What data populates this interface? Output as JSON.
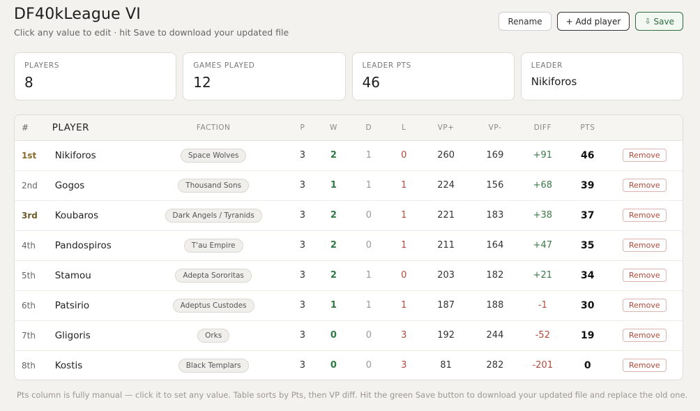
{
  "header": {
    "title": "DF40kLeague VI",
    "subtitle": "Click any value to edit · hit Save to download your updated file"
  },
  "actions": {
    "rename_label": "Rename",
    "add_player_label": "+ Add player",
    "save_icon": "download-icon",
    "save_label": "Save"
  },
  "stats": [
    {
      "label": "PLAYERS",
      "value": "8"
    },
    {
      "label": "GAMES PLAYED",
      "value": "12"
    },
    {
      "label": "LEADER PTS",
      "value": "46"
    },
    {
      "label": "LEADER",
      "value": "Nikiforos"
    }
  ],
  "table": {
    "columns": [
      "#",
      "PLAYER",
      "FACTION",
      "P",
      "W",
      "D",
      "L",
      "VP+",
      "VP-",
      "DIFF",
      "PTS"
    ],
    "remove_label": "Remove",
    "rows": [
      {
        "rank": "1st",
        "player": "Nikiforos",
        "faction": "Space Wolves",
        "p": "3",
        "w": "2",
        "d": "1",
        "l": "0",
        "vp_plus": "260",
        "vp_minus": "169",
        "diff": "+91",
        "pts": "46"
      },
      {
        "rank": "2nd",
        "player": "Gogos",
        "faction": "Thousand Sons",
        "p": "3",
        "w": "1",
        "d": "1",
        "l": "1",
        "vp_plus": "224",
        "vp_minus": "156",
        "diff": "+68",
        "pts": "39"
      },
      {
        "rank": "3rd",
        "player": "Koubaros",
        "faction": "Dark Angels / Tyranids",
        "p": "3",
        "w": "2",
        "d": "0",
        "l": "1",
        "vp_plus": "221",
        "vp_minus": "183",
        "diff": "+38",
        "pts": "37"
      },
      {
        "rank": "4th",
        "player": "Pandospiros",
        "faction": "T'au Empire",
        "p": "3",
        "w": "2",
        "d": "0",
        "l": "1",
        "vp_plus": "211",
        "vp_minus": "164",
        "diff": "+47",
        "pts": "35"
      },
      {
        "rank": "5th",
        "player": "Stamou",
        "faction": "Adepta Sororitas",
        "p": "3",
        "w": "2",
        "d": "1",
        "l": "0",
        "vp_plus": "203",
        "vp_minus": "182",
        "diff": "+21",
        "pts": "34"
      },
      {
        "rank": "6th",
        "player": "Patsirio",
        "faction": "Adeptus Custodes",
        "p": "3",
        "w": "1",
        "d": "1",
        "l": "1",
        "vp_plus": "187",
        "vp_minus": "188",
        "diff": "-1",
        "pts": "30"
      },
      {
        "rank": "7th",
        "player": "Gligoris",
        "faction": "Orks",
        "p": "3",
        "w": "0",
        "d": "0",
        "l": "3",
        "vp_plus": "192",
        "vp_minus": "244",
        "diff": "-52",
        "pts": "19"
      },
      {
        "rank": "8th",
        "player": "Kostis",
        "faction": "Black Templars",
        "p": "3",
        "w": "0",
        "d": "0",
        "l": "3",
        "vp_plus": "81",
        "vp_minus": "282",
        "diff": "-201",
        "pts": "0"
      }
    ]
  },
  "footer": {
    "note": "Pts column is fully manual — click it to set any value. Table sorts by Pts, then VP diff. Hit the green Save button to download your updated file and replace the old one."
  },
  "colors": {
    "accent_green": "#2f7a43",
    "loss_red": "#b04a3a",
    "background": "#f3f2ee"
  }
}
